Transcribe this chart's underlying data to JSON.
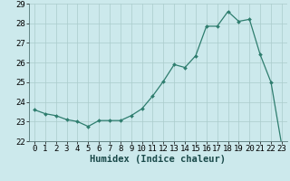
{
  "x": [
    0,
    1,
    2,
    3,
    4,
    5,
    6,
    7,
    8,
    9,
    10,
    11,
    12,
    13,
    14,
    15,
    16,
    17,
    18,
    19,
    20,
    21,
    22,
    23
  ],
  "y": [
    23.6,
    23.4,
    23.3,
    23.1,
    23.0,
    22.75,
    23.05,
    23.05,
    23.05,
    23.3,
    23.65,
    24.3,
    25.05,
    25.9,
    25.75,
    26.35,
    27.85,
    27.85,
    28.6,
    28.1,
    28.2,
    26.4,
    25.0,
    21.8
  ],
  "line_color": "#2e7d6e",
  "marker_color": "#2e7d6e",
  "bg_color": "#cce9ec",
  "grid_color": "#aacccc",
  "xlabel": "Humidex (Indice chaleur)",
  "ylim": [
    22,
    29
  ],
  "xlim": [
    -0.5,
    23.5
  ],
  "yticks": [
    22,
    23,
    24,
    25,
    26,
    27,
    28,
    29
  ],
  "xticks": [
    0,
    1,
    2,
    3,
    4,
    5,
    6,
    7,
    8,
    9,
    10,
    11,
    12,
    13,
    14,
    15,
    16,
    17,
    18,
    19,
    20,
    21,
    22,
    23
  ],
  "xlabel_fontsize": 7.5,
  "tick_fontsize": 6.5
}
